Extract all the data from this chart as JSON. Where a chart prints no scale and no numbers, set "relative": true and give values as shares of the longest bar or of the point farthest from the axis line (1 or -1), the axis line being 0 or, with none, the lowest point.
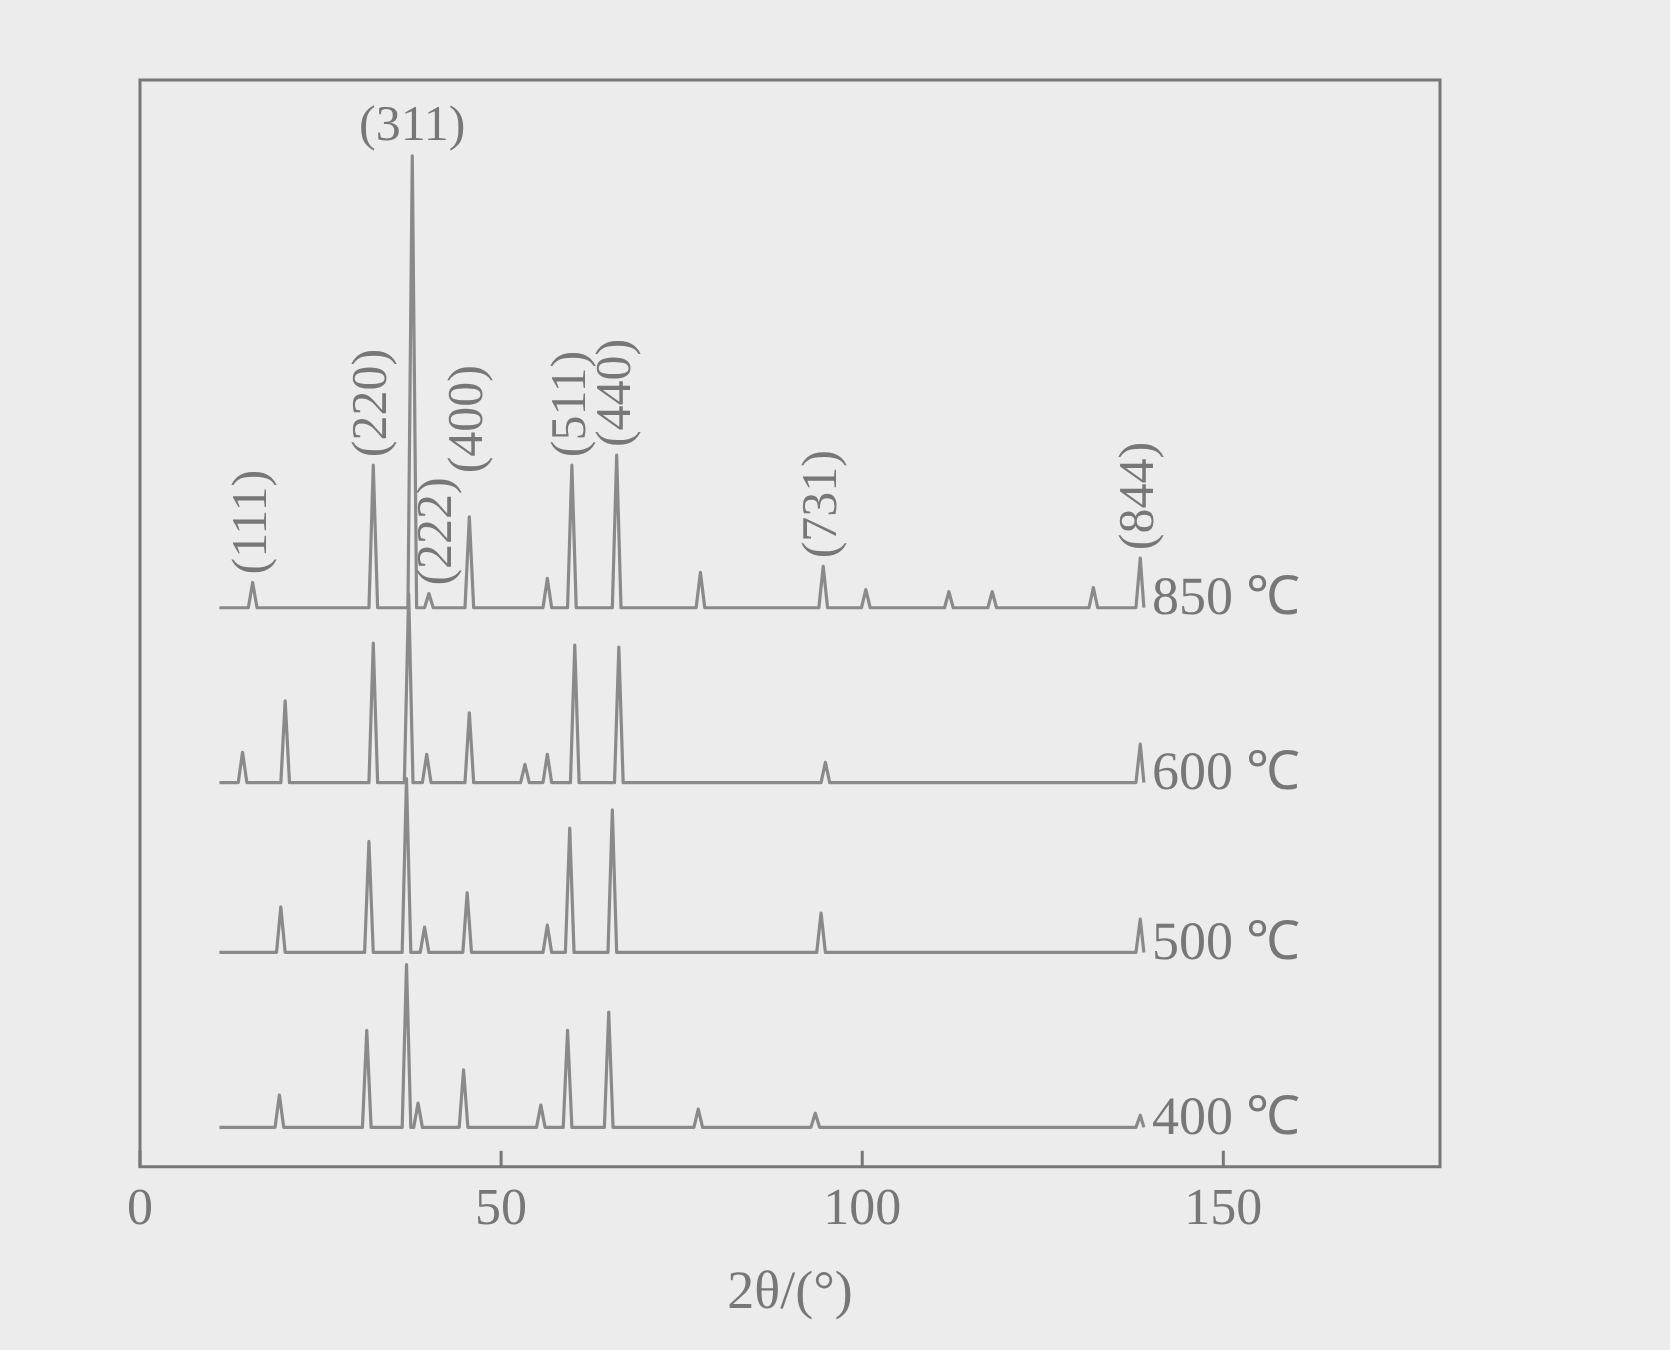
{
  "chart_data": {
    "type": "line",
    "relative": true,
    "xlabel": "2θ/(°)",
    "xlim": [
      0,
      180
    ],
    "xticks": [
      0,
      50,
      100,
      150
    ],
    "grid": false,
    "legend": false,
    "marker": "none",
    "line_style": "solid",
    "series": [
      {
        "name": "850 ℃",
        "color": "#8a8a8a",
        "x": [
          11,
          15,
          15.6,
          16.2,
          31.7,
          32.3,
          32.9,
          37.1,
          37.7,
          38.3,
          39.4,
          40,
          40.6,
          45,
          45.6,
          46.2,
          55.8,
          56.4,
          57,
          59.2,
          59.8,
          60.4,
          65.4,
          66,
          66.6,
          77,
          77.6,
          78.2,
          94,
          94.6,
          95.2,
          99.9,
          100.5,
          101.1,
          111.4,
          112,
          112.6,
          117.4,
          118,
          118.6,
          131.4,
          132,
          132.6,
          137.9,
          138.5,
          139
        ],
        "values": [
          0.553,
          0.553,
          0.578,
          0.553,
          0.553,
          0.694,
          0.553,
          0.553,
          1.0,
          0.553,
          0.553,
          0.567,
          0.553,
          0.553,
          0.643,
          0.553,
          0.553,
          0.582,
          0.553,
          0.553,
          0.694,
          0.553,
          0.553,
          0.704,
          0.553,
          0.553,
          0.588,
          0.553,
          0.553,
          0.594,
          0.553,
          0.553,
          0.571,
          0.553,
          0.553,
          0.569,
          0.553,
          0.553,
          0.569,
          0.553,
          0.553,
          0.573,
          0.553,
          0.553,
          0.602,
          0.553
        ]
      },
      {
        "name": "600 ℃",
        "color": "#8a8a8a",
        "x": [
          11,
          13.6,
          14.2,
          14.8,
          19.5,
          20.1,
          20.7,
          31.7,
          32.3,
          32.9,
          36.6,
          37.2,
          37.8,
          39.1,
          39.7,
          40.3,
          45,
          45.6,
          46.2,
          52.7,
          53.3,
          53.9,
          55.8,
          56.4,
          57,
          59.6,
          60.2,
          60.8,
          65.7,
          66.3,
          66.9,
          94.3,
          94.9,
          95.5,
          137.9,
          138.5,
          139
        ],
        "values": [
          0.38,
          0.38,
          0.41,
          0.38,
          0.38,
          0.461,
          0.38,
          0.38,
          0.518,
          0.38,
          0.38,
          0.567,
          0.38,
          0.38,
          0.408,
          0.38,
          0.38,
          0.449,
          0.38,
          0.38,
          0.398,
          0.38,
          0.38,
          0.408,
          0.38,
          0.38,
          0.516,
          0.38,
          0.38,
          0.514,
          0.38,
          0.38,
          0.4,
          0.38,
          0.38,
          0.418,
          0.38
        ]
      },
      {
        "name": "500 ℃",
        "color": "#8a8a8a",
        "x": [
          11,
          18.9,
          19.5,
          20.1,
          31.1,
          31.7,
          32.3,
          36.3,
          36.9,
          37.5,
          38.8,
          39.4,
          40,
          44.7,
          45.3,
          45.9,
          55.8,
          56.4,
          57,
          58.9,
          59.5,
          60.1,
          64.8,
          65.4,
          66,
          93.7,
          94.3,
          94.9,
          137.9,
          138.5,
          139
        ],
        "values": [
          0.212,
          0.212,
          0.257,
          0.212,
          0.212,
          0.322,
          0.212,
          0.212,
          0.384,
          0.212,
          0.212,
          0.237,
          0.212,
          0.212,
          0.271,
          0.212,
          0.212,
          0.239,
          0.212,
          0.212,
          0.335,
          0.212,
          0.212,
          0.353,
          0.212,
          0.212,
          0.251,
          0.212,
          0.212,
          0.245,
          0.212
        ]
      },
      {
        "name": "400 ℃",
        "color": "#8a8a8a",
        "x": [
          11,
          18.7,
          19.3,
          19.9,
          30.8,
          31.4,
          32,
          36.3,
          36.9,
          37.5,
          37.9,
          38.5,
          39.1,
          44.2,
          44.8,
          45.4,
          54.9,
          55.5,
          56.1,
          58.6,
          59.2,
          59.8,
          64.3,
          64.9,
          65.5,
          76.7,
          77.3,
          77.9,
          92.9,
          93.5,
          94.1,
          137.9,
          138.5,
          139
        ],
        "values": [
          0.039,
          0.039,
          0.071,
          0.039,
          0.039,
          0.135,
          0.039,
          0.039,
          0.2,
          0.039,
          0.039,
          0.063,
          0.039,
          0.039,
          0.096,
          0.039,
          0.039,
          0.061,
          0.039,
          0.039,
          0.135,
          0.039,
          0.039,
          0.153,
          0.039,
          0.039,
          0.057,
          0.039,
          0.039,
          0.053,
          0.039,
          0.039,
          0.051,
          0.039
        ]
      }
    ],
    "annotations": [
      {
        "text": "(111)",
        "x": 15.6,
        "y": 0.578
      },
      {
        "text": "(220)",
        "x": 32.3,
        "y": 0.694
      },
      {
        "text": "(311)",
        "x": 37.7,
        "y": 1.0
      },
      {
        "text": "(222)",
        "x": 40,
        "y": 0.567
      },
      {
        "text": "(400)",
        "x": 45.6,
        "y": 0.643
      },
      {
        "text": "(511)",
        "x": 59.8,
        "y": 0.694
      },
      {
        "text": "(440)",
        "x": 66,
        "y": 0.704
      },
      {
        "text": "(731)",
        "x": 94.6,
        "y": 0.594
      },
      {
        "text": "(844)",
        "x": 138.5,
        "y": 0.602
      }
    ]
  }
}
